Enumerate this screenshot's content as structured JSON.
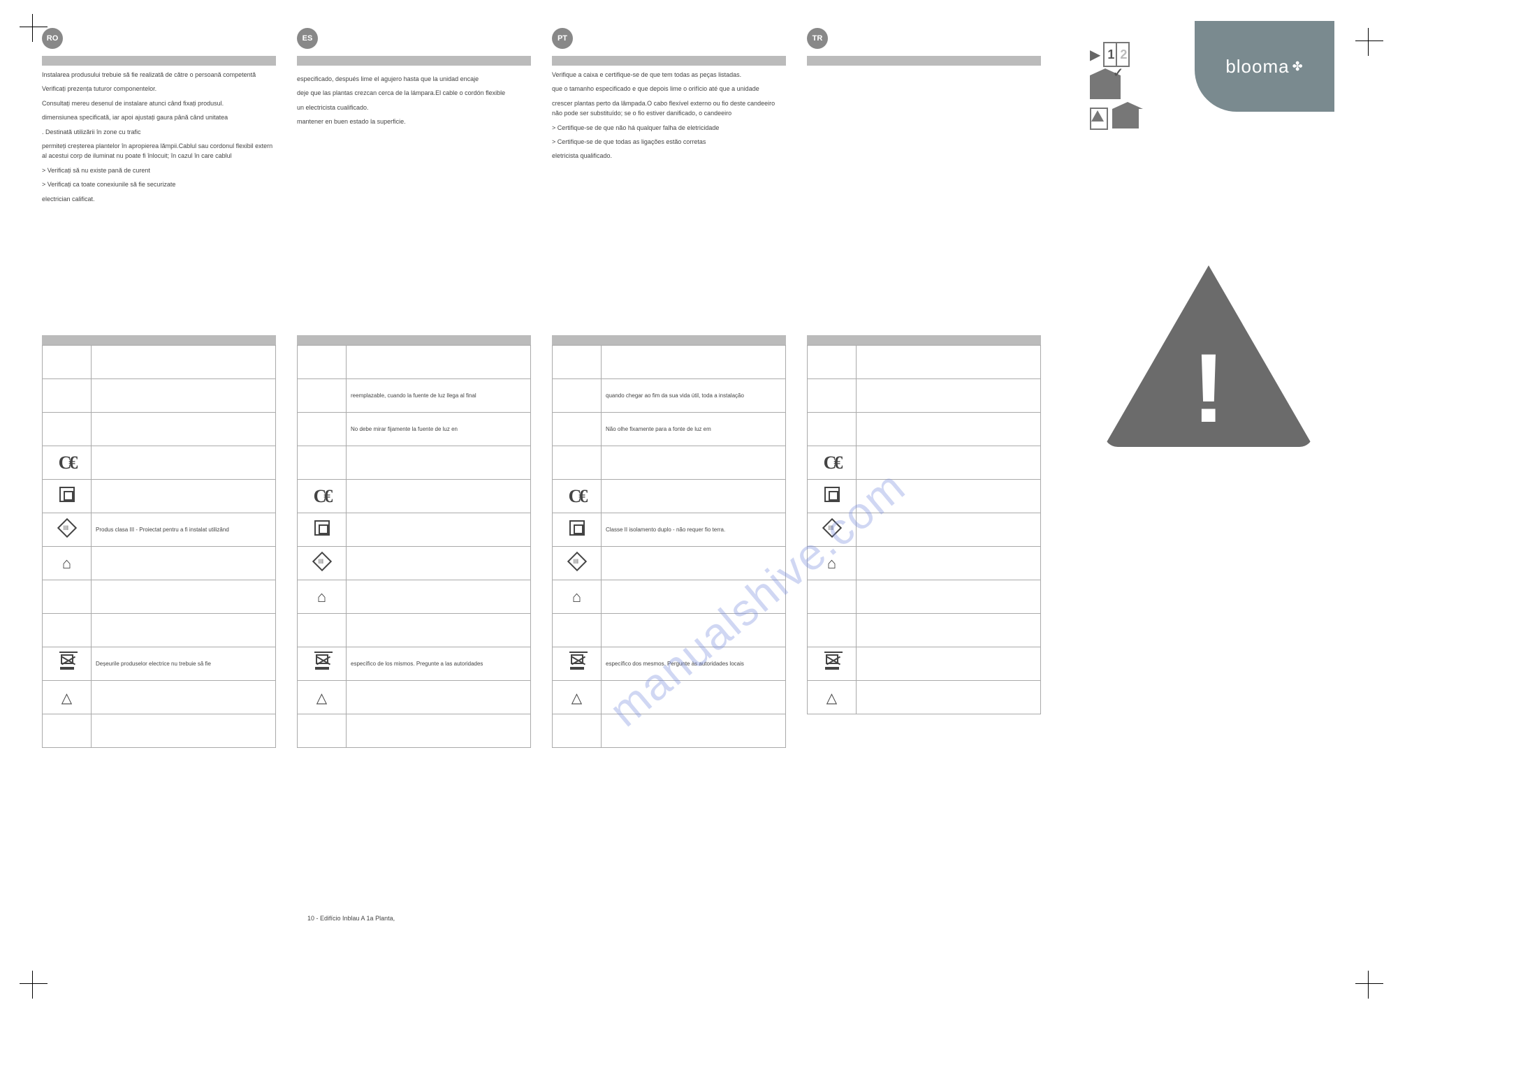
{
  "brand": "blooma",
  "watermark": "manualshive.com",
  "footer": "10 - Edifício Inblau A 1a Planta,",
  "columns": [
    {
      "lang": "RO",
      "paragraphs": [
        "Instalarea produsului trebuie să fie realizată de către o persoană competentă",
        "Verificați prezența tuturor componentelor.",
        "Consultați mereu desenul de instalare atunci când fixați produsul.",
        "dimensiunea specificată, iar apoi ajustați gaura până când unitatea",
        ". Destinată utilizării în zone cu trafic",
        "permiteți creșterea plantelor în apropierea lămpii.Cablul sau cordonul flexibil extern al acestui corp de iluminat nu poate fi înlocuit; în cazul în care cablul",
        "> Verificați să nu existe pană de curent",
        "> Verificați ca toate conexiunile să fie securizate",
        "electrician calificat."
      ],
      "tableRows": [
        {
          "icon": "",
          "text": ""
        },
        {
          "icon": "",
          "text": ""
        },
        {
          "icon": "",
          "text": ""
        },
        {
          "icon": "ce",
          "text": ""
        },
        {
          "icon": "class2",
          "text": ""
        },
        {
          "icon": "class3",
          "text": "Produs clasa III - Proiectat pentru a fi instalat utilizând"
        },
        {
          "icon": "house",
          "text": ""
        },
        {
          "icon": "",
          "text": ""
        },
        {
          "icon": "",
          "text": ""
        },
        {
          "icon": "weee",
          "text": "Deșeurile produselor electrice nu trebuie să fie"
        },
        {
          "icon": "recycle",
          "text": ""
        },
        {
          "icon": "",
          "text": ""
        }
      ]
    },
    {
      "lang": "ES",
      "paragraphs": [
        "",
        "",
        "especificado, después lime el agujero hasta que la unidad encaje",
        "deje que las plantas crezcan cerca de la lámpara.El cable o cordón flexible",
        "",
        "un electricista cualificado.",
        "",
        "mantener en buen estado la superficie."
      ],
      "tableRows": [
        {
          "icon": "",
          "text": ""
        },
        {
          "icon": "",
          "text": "reemplazable, cuando la fuente de luz llega al final"
        },
        {
          "icon": "",
          "text": "No debe mirar fijamente la fuente de luz en"
        },
        {
          "icon": "",
          "text": ""
        },
        {
          "icon": "ce",
          "text": ""
        },
        {
          "icon": "class2",
          "text": ""
        },
        {
          "icon": "class3",
          "text": ""
        },
        {
          "icon": "house",
          "text": ""
        },
        {
          "icon": "",
          "text": ""
        },
        {
          "icon": "weee",
          "text": "específico de los mismos. Pregunte a las autoridades"
        },
        {
          "icon": "recycle",
          "text": ""
        },
        {
          "icon": "",
          "text": ""
        }
      ]
    },
    {
      "lang": "PT",
      "paragraphs": [
        "Verifique a caixa e certifique-se de que tem todas as peças listadas.",
        "",
        "que o tamanho especificado e que depois lime o orifício até que a unidade",
        "crescer plantas perto da lâmpada.O cabo flexível externo ou fio deste candeeiro não pode ser substituído; se o fio estiver danificado, o candeeiro",
        "> Certifique-se de que não há qualquer falha de eletricidade",
        "> Certifique-se de que todas as ligações estão corretas",
        "eletricista qualificado."
      ],
      "tableRows": [
        {
          "icon": "",
          "text": ""
        },
        {
          "icon": "",
          "text": "quando chegar ao fim da sua vida útil, toda a instalação"
        },
        {
          "icon": "",
          "text": "Não olhe fixamente para a fonte de luz em"
        },
        {
          "icon": "",
          "text": ""
        },
        {
          "icon": "ce",
          "text": ""
        },
        {
          "icon": "class2",
          "text": "Classe II isolamento duplo - não requer fio terra."
        },
        {
          "icon": "class3",
          "text": ""
        },
        {
          "icon": "house",
          "text": ""
        },
        {
          "icon": "",
          "text": ""
        },
        {
          "icon": "weee",
          "text": "específico dos mesmos. Pergunte às autoridades locais"
        },
        {
          "icon": "recycle",
          "text": ""
        },
        {
          "icon": "",
          "text": ""
        }
      ]
    },
    {
      "lang": "TR",
      "paragraphs": [
        ""
      ],
      "tableRows": [
        {
          "icon": "",
          "text": ""
        },
        {
          "icon": "",
          "text": ""
        },
        {
          "icon": "",
          "text": ""
        },
        {
          "icon": "ce",
          "text": ""
        },
        {
          "icon": "class2",
          "text": ""
        },
        {
          "icon": "class3",
          "text": ""
        },
        {
          "icon": "house",
          "text": ""
        },
        {
          "icon": "",
          "text": ""
        },
        {
          "icon": "",
          "text": ""
        },
        {
          "icon": "weee",
          "text": ""
        },
        {
          "icon": "recycle",
          "text": ""
        }
      ]
    }
  ],
  "colors": {
    "badge": "#888888",
    "bar": "#bbbbbb",
    "text": "#444444",
    "brand_bg": "#7a8a8f",
    "warning": "#6b6b6b",
    "watermark": "rgba(120,140,220,0.35)"
  }
}
